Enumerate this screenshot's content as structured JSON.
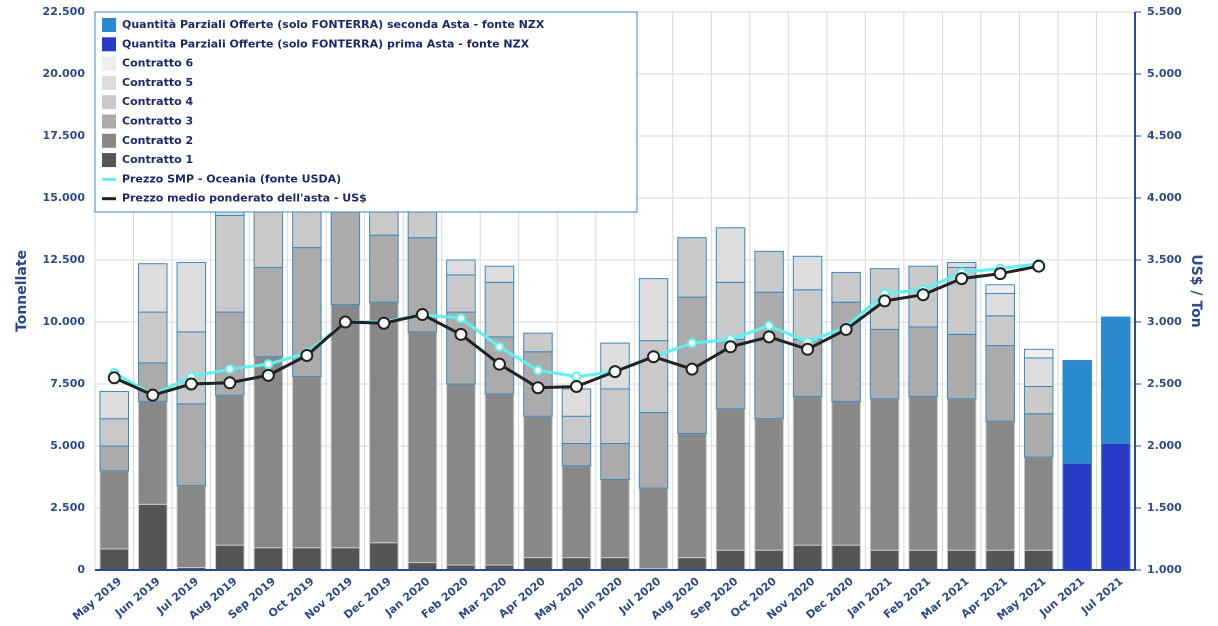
{
  "chart_data": {
    "type": "bar",
    "stacked": true,
    "y_label": "Tonnellate",
    "y2_label": "US$ / Ton",
    "categories": [
      "May 2019",
      "Jun 2019",
      "Jul 2019",
      "Aug 2019",
      "Sep 2019",
      "Oct 2019",
      "Nov 2019",
      "Dec 2019",
      "Jan 2020",
      "Feb 2020",
      "Mar 2020",
      "Apr 2020",
      "May 2020",
      "Jun 2020",
      "Jul 2020",
      "Aug 2020",
      "Sep 2020",
      "Oct 2020",
      "Nov 2020",
      "Dec 2020",
      "Jan 2021",
      "Feb 2021",
      "Mar 2021",
      "Apr 2021",
      "May 2021",
      "Jun 2021",
      "Jul 2021"
    ],
    "ylim": [
      0,
      22500
    ],
    "yticks": [
      0,
      {
        "value": 2500,
        "label": "2.500"
      },
      {
        "value": 5000,
        "label": "5.000"
      },
      {
        "value": 7500,
        "label": "7.500"
      },
      {
        "value": 10000,
        "label": "10.000"
      },
      {
        "value": 12500,
        "label": "12.500"
      },
      {
        "value": 15000,
        "label": "15.000"
      },
      {
        "value": 17500,
        "label": "17.500"
      },
      {
        "value": 20000,
        "label": "20.000"
      },
      {
        "value": 22500,
        "label": "22.500"
      }
    ],
    "y2lim": [
      1000,
      5500
    ],
    "y2ticks": [
      {
        "value": 1000,
        "label": "1.000"
      },
      {
        "value": 1500,
        "label": "1.500"
      },
      {
        "value": 2000,
        "label": "2.000"
      },
      {
        "value": 2500,
        "label": "2.500"
      },
      {
        "value": 3000,
        "label": "3.000"
      },
      {
        "value": 3500,
        "label": "3.500"
      },
      {
        "value": 4000,
        "label": "4.000"
      },
      {
        "value": 4500,
        "label": "4.500"
      },
      {
        "value": 5000,
        "label": "5.000"
      },
      {
        "value": 5500,
        "label": "5.500"
      }
    ],
    "grid": true,
    "legend": "top-left",
    "series": [
      {
        "name": "Quantità Parziali Offerte (solo FONTERRA) seconda Asta - fonte NZX",
        "color": "#2a8ad0",
        "values": [
          null,
          null,
          null,
          null,
          null,
          null,
          null,
          null,
          null,
          null,
          null,
          null,
          null,
          null,
          null,
          null,
          null,
          null,
          null,
          null,
          null,
          null,
          null,
          null,
          null,
          4150,
          5100
        ]
      },
      {
        "name": "Quantita Parziali Offerte (solo FONTERRA) prima Asta - fonte NZX",
        "color": "#2a3ac8",
        "values": [
          null,
          null,
          null,
          null,
          null,
          null,
          null,
          null,
          null,
          null,
          null,
          null,
          null,
          null,
          null,
          null,
          null,
          null,
          null,
          null,
          null,
          null,
          null,
          null,
          null,
          4300,
          5100
        ]
      },
      {
        "name": "Contratto 6",
        "color": "#eeeeee",
        "values": [
          null,
          null,
          null,
          null,
          null,
          null,
          null,
          null,
          null,
          null,
          null,
          null,
          null,
          null,
          null,
          null,
          null,
          null,
          null,
          null,
          null,
          null,
          null,
          350,
          350,
          null,
          null
        ]
      },
      {
        "name": "Contratto 5",
        "color": "#dddddd",
        "values": [
          1100,
          1950,
          2800,
          3000,
          3100,
          2400,
          1400,
          null,
          null,
          600,
          650,
          null,
          1100,
          1850,
          2500,
          null,
          2200,
          null,
          1350,
          null,
          null,
          null,
          200,
          900,
          1150,
          null,
          null
        ]
      },
      {
        "name": "Contratto 4",
        "color": "#c9c9c9",
        "values": [
          1100,
          2050,
          2900,
          3900,
          3300,
          2500,
          1700,
          1500,
          1600,
          1500,
          2200,
          750,
          1100,
          2200,
          2900,
          2400,
          2300,
          1650,
          2000,
          1200,
          2450,
          2450,
          2700,
          1200,
          1100,
          null,
          null
        ]
      },
      {
        "name": "Contratto 3",
        "color": "#ababab",
        "values": [
          1000,
          1550,
          3300,
          3350,
          3600,
          5200,
          3800,
          2700,
          3800,
          2900,
          2300,
          2600,
          900,
          1450,
          3050,
          5500,
          2800,
          5100,
          2300,
          4000,
          2800,
          2800,
          2600,
          3050,
          1750,
          null,
          null
        ]
      },
      {
        "name": "Contratto 2",
        "color": "#888888",
        "values": [
          3150,
          4150,
          3300,
          6050,
          7700,
          6900,
          9800,
          9700,
          9300,
          7300,
          6900,
          5700,
          3700,
          3150,
          3250,
          5000,
          5700,
          5300,
          6000,
          5800,
          6100,
          6200,
          6100,
          5200,
          3750,
          null,
          null
        ]
      },
      {
        "name": "Contratto 1",
        "color": "#555555",
        "values": [
          850,
          2650,
          100,
          1000,
          900,
          900,
          900,
          1100,
          300,
          200,
          200,
          500,
          500,
          500,
          50,
          500,
          800,
          800,
          1000,
          1000,
          800,
          800,
          800,
          800,
          800,
          null,
          null
        ]
      },
      {
        "name": "Prezzo SMP - Oceania (fonte USDA)",
        "type": "line",
        "axis": "y2",
        "color": "#5ff0f0",
        "values": [
          2590,
          2410,
          2560,
          2620,
          2660,
          2750,
          3000,
          3000,
          3060,
          3030,
          2800,
          2610,
          2560,
          2600,
          2720,
          2830,
          2860,
          2970,
          2840,
          2960,
          3230,
          3260,
          3400,
          3430,
          3470,
          null,
          null
        ]
      },
      {
        "name": "Prezzo medio ponderato dell'asta - US$",
        "type": "line",
        "axis": "y2",
        "color": "#222222",
        "values": [
          2550,
          2410,
          2500,
          2510,
          2570,
          2730,
          3000,
          2990,
          3060,
          2900,
          2660,
          2470,
          2480,
          2600,
          2720,
          2620,
          2800,
          2880,
          2780,
          2940,
          3170,
          3220,
          3350,
          3390,
          3450,
          null,
          null
        ]
      }
    ]
  }
}
